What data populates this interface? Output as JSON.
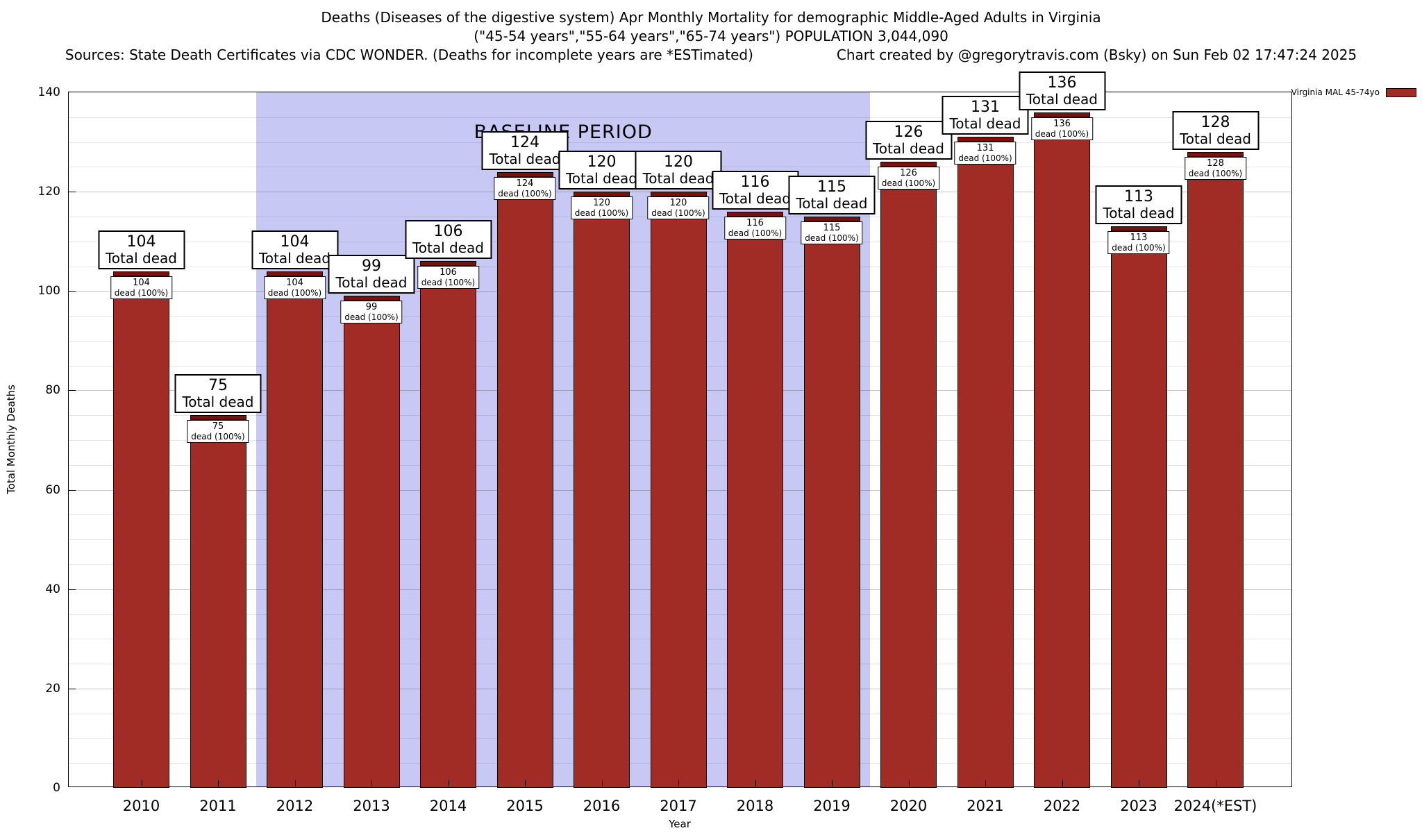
{
  "chart_data": {
    "type": "bar",
    "title": "Deaths (Diseases of the digestive system) Apr Monthly Mortality for demographic Middle-Aged Adults in Virginia",
    "subtitle": "(\"45-54 years\",\"55-64 years\",\"65-74 years\") POPULATION 3,044,090",
    "source_note": "Sources: State Death Certificates via CDC WONDER. (Deaths for incomplete years are *ESTimated)",
    "credit_note": "Chart created by @gregorytravis.com (Bsky) on Sun Feb 02 17:47:24 2025",
    "xlabel": "Year",
    "ylabel": "Total Monthly Deaths",
    "ylim": [
      0,
      140
    ],
    "yticks": [
      0,
      20,
      40,
      60,
      80,
      100,
      120,
      140
    ],
    "ytick_step": 20,
    "minor_grid_step": 5,
    "grid": true,
    "categories": [
      "2010",
      "2011",
      "2012",
      "2013",
      "2014",
      "2015",
      "2016",
      "2017",
      "2018",
      "2019",
      "2020",
      "2021",
      "2022",
      "2023",
      "2024(*EST)"
    ],
    "values": [
      104,
      75,
      104,
      99,
      106,
      124,
      120,
      120,
      116,
      115,
      126,
      131,
      136,
      113,
      128
    ],
    "series_name": "Virginia MAL 45-74yo",
    "legend": {
      "label": "Virginia MAL 45-74yo",
      "position": "top-right"
    },
    "baseline": {
      "label": "BASELINE PERIOD",
      "start_year": "2012",
      "end_year": "2019"
    },
    "bar_top_label": "Total dead",
    "bar_inner_label": "dead (100%)",
    "colors": {
      "bar": "#A02C25",
      "bar_cap": "#7A110C",
      "baseline_region": "#C8C8F5"
    }
  }
}
